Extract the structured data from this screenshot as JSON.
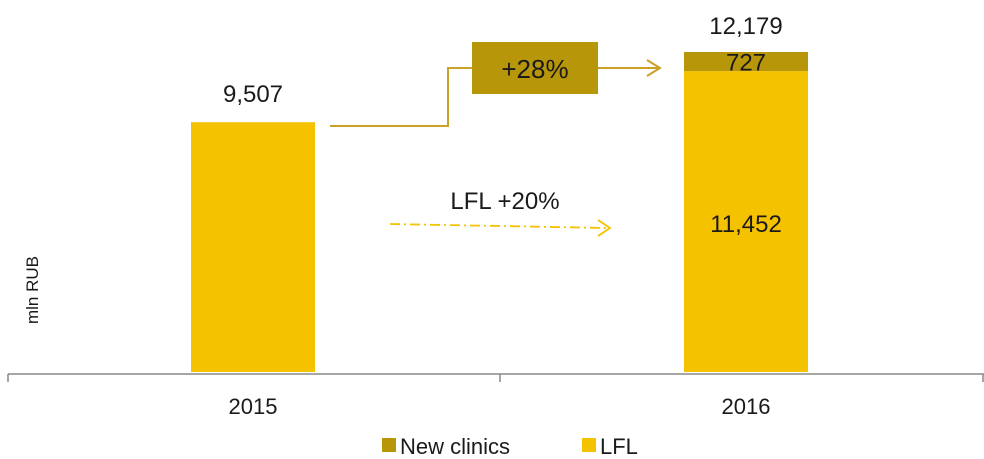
{
  "chart_data": {
    "type": "bar",
    "stacked": true,
    "categories": [
      "2015",
      "2016"
    ],
    "series": [
      {
        "name": "LFL",
        "color": "#F5C200",
        "values": [
          9507,
          11452
        ]
      },
      {
        "name": "New clinics",
        "color": "#B8960A",
        "values": [
          null,
          727
        ]
      }
    ],
    "totals": [
      "9,507",
      "12,179"
    ],
    "segment_labels": {
      "LFL_2016": "11,452",
      "New_clinics_2016": "727"
    },
    "ylabel": "mln RUB",
    "ylim": [
      0,
      12179
    ],
    "growth_label": "+28%",
    "growth_box_color": "#B8960A",
    "lfl_growth_label": "LFL +20%",
    "arrow_color": "#C9A227",
    "legend": {
      "position": "bottom",
      "items": [
        "New clinics",
        "LFL"
      ]
    },
    "grid": false
  }
}
